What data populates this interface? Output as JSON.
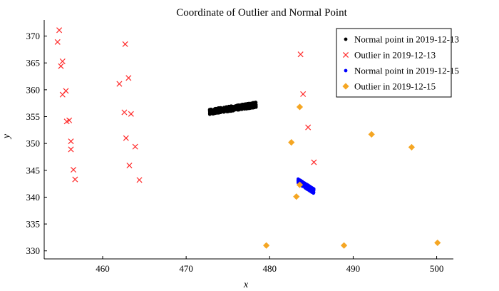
{
  "chart_data": {
    "type": "scatter",
    "title": "Coordinate of Outlier and Normal Point",
    "xlabel": "x",
    "ylabel": "y",
    "xlim": [
      453,
      502
    ],
    "ylim": [
      328.5,
      373
    ],
    "xticks": [
      460,
      470,
      480,
      490,
      500
    ],
    "yticks": [
      330,
      335,
      340,
      345,
      350,
      355,
      360,
      365,
      370
    ],
    "grid": false,
    "legend_position": "top-right",
    "series": [
      {
        "name": "Normal point in 2019-12-13",
        "marker": "dot",
        "color": "#000000",
        "clusters": [
          {
            "x_range": [
              472.8,
              478.4
            ],
            "y_center_start": 355.9,
            "y_center_end": 357.2,
            "thickness": 1.0
          }
        ]
      },
      {
        "name": "Outlier in 2019-12-13",
        "marker": "x",
        "color": "#ff2a2a",
        "points": [
          [
            454.8,
            371.1
          ],
          [
            454.6,
            368.9
          ],
          [
            455.2,
            365.3
          ],
          [
            455.0,
            364.4
          ],
          [
            455.6,
            359.8
          ],
          [
            455.2,
            359.1
          ],
          [
            456.0,
            354.3
          ],
          [
            455.7,
            354.1
          ],
          [
            456.2,
            350.4
          ],
          [
            456.2,
            348.9
          ],
          [
            456.5,
            345.1
          ],
          [
            456.7,
            343.3
          ],
          [
            462.7,
            368.5
          ],
          [
            463.1,
            362.2
          ],
          [
            462.0,
            361.1
          ],
          [
            462.6,
            355.8
          ],
          [
            463.4,
            355.5
          ],
          [
            462.8,
            351.0
          ],
          [
            463.9,
            349.4
          ],
          [
            463.2,
            345.9
          ],
          [
            464.4,
            343.2
          ],
          [
            483.7,
            366.6
          ],
          [
            484.0,
            359.2
          ],
          [
            484.6,
            353.0
          ],
          [
            485.3,
            346.5
          ]
        ]
      },
      {
        "name": "Normal point in 2019-12-15",
        "marker": "dot",
        "color": "#0000ff",
        "clusters": [
          {
            "x_range": [
              483.4,
              485.3
            ],
            "y_center_start": 343.0,
            "y_center_end": 341.1,
            "thickness": 0.9
          }
        ]
      },
      {
        "name": "Outlier in 2019-12-15",
        "marker": "diamond",
        "color": "#f5a623",
        "points": [
          [
            483.6,
            356.8
          ],
          [
            482.6,
            350.2
          ],
          [
            492.2,
            351.7
          ],
          [
            497.0,
            349.3
          ],
          [
            483.6,
            342.3
          ],
          [
            483.2,
            340.1
          ],
          [
            479.6,
            331.0
          ],
          [
            488.9,
            331.0
          ],
          [
            500.1,
            331.5
          ]
        ]
      }
    ]
  }
}
